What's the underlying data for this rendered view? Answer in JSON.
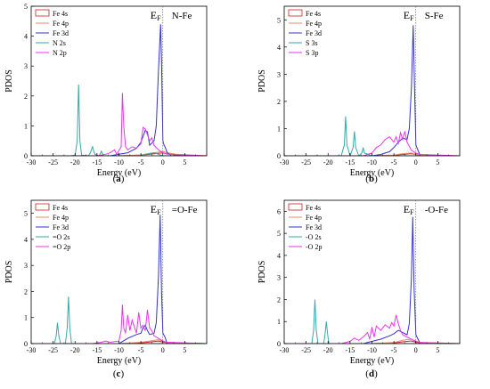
{
  "colors": {
    "fe4s": "#cc2222",
    "fe4p": "#ee8866",
    "fe3d": "#3333cc",
    "ls": "#33aaaa",
    "lp": "#ee33ee"
  },
  "chart_data": [
    {
      "type": "line",
      "panel": "(a)",
      "tag": "N-Fe",
      "fermi_label": "EF",
      "xlabel": "Energy (eV)",
      "ylabel": "PDOS",
      "xlim": [
        -30,
        10
      ],
      "ylim": [
        0,
        5
      ],
      "xticks": [
        -30,
        -25,
        -20,
        -15,
        -10,
        -5,
        0,
        5
      ],
      "yticks": [
        0,
        1,
        2,
        3,
        4,
        5
      ],
      "legend_position": "top-left",
      "series": [
        {
          "name": "Fe 4s",
          "color": "#cc2222",
          "x": [
            -30,
            -10,
            -5,
            -3,
            -1,
            0,
            1,
            3,
            10
          ],
          "y": [
            0,
            0,
            0.02,
            0.05,
            0.08,
            0.1,
            0.06,
            0.03,
            0
          ]
        },
        {
          "name": "Fe 4p",
          "color": "#ee8866",
          "x": [
            -30,
            -10,
            -5,
            -3,
            -1,
            0,
            1,
            3,
            10
          ],
          "y": [
            0,
            0,
            0.03,
            0.08,
            0.12,
            0.15,
            0.1,
            0.05,
            0
          ]
        },
        {
          "name": "Fe 3d",
          "color": "#3333cc",
          "x": [
            -30,
            -12,
            -10,
            -8,
            -6,
            -5,
            -4,
            -3.5,
            -3,
            -2,
            -1.5,
            -1,
            -0.5,
            -0.3,
            0,
            0.3,
            0.5,
            1,
            2,
            10
          ],
          "y": [
            0,
            0,
            0.05,
            0.1,
            0.25,
            0.45,
            0.85,
            0.8,
            0.35,
            0.5,
            1.0,
            2.8,
            4.4,
            3.2,
            0.5,
            0.35,
            0.3,
            0.1,
            0,
            0
          ]
        },
        {
          "name": "N  2s",
          "color": "#33aaaa",
          "x": [
            -30,
            -21,
            -20,
            -19.5,
            -19.2,
            -18.9,
            -18.5,
            -17,
            -16.5,
            -16,
            -15.5,
            -14.5,
            -14,
            -13.5,
            -12,
            -10,
            -8,
            -5,
            -4,
            -2,
            0,
            10
          ],
          "y": [
            0,
            0,
            0.02,
            0.5,
            2.38,
            0.5,
            0.02,
            0,
            0.1,
            0.3,
            0.05,
            0,
            0.15,
            0,
            0,
            0,
            0,
            0,
            0.05,
            0.1,
            0,
            0
          ]
        },
        {
          "name": "N  2p",
          "color": "#ee33ee",
          "x": [
            -30,
            -15,
            -13,
            -12,
            -11,
            -10.5,
            -9.5,
            -9.2,
            -8.9,
            -8.5,
            -8,
            -7,
            -6,
            -5,
            -4.5,
            -4,
            -3.5,
            -3,
            -2.5,
            -2,
            -1,
            0,
            1,
            10
          ],
          "y": [
            0,
            0,
            0.05,
            0.1,
            0.2,
            0.05,
            0.3,
            2.1,
            1.0,
            0.3,
            0.2,
            0.3,
            0.25,
            0.4,
            0.95,
            0.9,
            0.7,
            0.5,
            0.6,
            0.35,
            0.2,
            0.1,
            0.05,
            0
          ]
        }
      ]
    },
    {
      "type": "line",
      "panel": "(b)",
      "tag": "S-Fe",
      "fermi_label": "EF",
      "xlabel": "Energy (eV)",
      "ylabel": "PDOS",
      "xlim": [
        -30,
        10
      ],
      "ylim": [
        0,
        5.5
      ],
      "xticks": [
        -30,
        -25,
        -20,
        -15,
        -10,
        -5,
        0,
        5
      ],
      "yticks": [
        0,
        1,
        2,
        3,
        4,
        5
      ],
      "legend_position": "top-left",
      "series": [
        {
          "name": "Fe 4s",
          "color": "#cc2222",
          "x": [
            -30,
            -10,
            -5,
            -3,
            -1,
            0,
            1,
            10
          ],
          "y": [
            0,
            0,
            0.02,
            0.05,
            0.08,
            0.05,
            0.02,
            0
          ]
        },
        {
          "name": "Fe 4p",
          "color": "#ee8866",
          "x": [
            -30,
            -10,
            -5,
            -3,
            -1,
            0,
            1,
            10
          ],
          "y": [
            0,
            0,
            0.03,
            0.08,
            0.1,
            0.06,
            0.03,
            0
          ]
        },
        {
          "name": "Fe 3d",
          "color": "#3333cc",
          "x": [
            -30,
            -10,
            -8,
            -6,
            -5,
            -4,
            -3,
            -2,
            -1.5,
            -1,
            -0.6,
            -0.3,
            0,
            0.5,
            1,
            10
          ],
          "y": [
            0,
            0,
            0.05,
            0.15,
            0.3,
            0.5,
            0.65,
            0.6,
            1.0,
            2.5,
            4.8,
            2.5,
            0.4,
            0.2,
            0,
            0
          ]
        },
        {
          "name": "S  3s",
          "color": "#33aaaa",
          "x": [
            -30,
            -17,
            -16.3,
            -16,
            -15.7,
            -15,
            -14.3,
            -14,
            -13.7,
            -13,
            -12.3,
            -12,
            -11.7,
            -10,
            10
          ],
          "y": [
            0,
            0,
            0.4,
            1.45,
            0.4,
            0,
            0.3,
            0.9,
            0.3,
            0,
            0.1,
            0.3,
            0.1,
            0,
            0
          ]
        },
        {
          "name": "S  3p",
          "color": "#ee33ee",
          "x": [
            -30,
            -12,
            -10,
            -9,
            -8,
            -7,
            -6,
            -5,
            -4.5,
            -4,
            -3.5,
            -3,
            -2.5,
            -2,
            -1.5,
            -1,
            0,
            1,
            10
          ],
          "y": [
            0,
            0,
            0.1,
            0.3,
            0.4,
            0.6,
            0.7,
            0.5,
            0.7,
            0.45,
            0.85,
            0.6,
            0.9,
            0.5,
            0.35,
            0.2,
            0.1,
            0.05,
            0
          ]
        }
      ]
    },
    {
      "type": "line",
      "panel": "(c)",
      "tag": "=O-Fe",
      "fermi_label": "EF",
      "xlabel": "Energy (eV)",
      "ylabel": "PDOS",
      "xlim": [
        -30,
        10
      ],
      "ylim": [
        0,
        5.5
      ],
      "xticks": [
        -30,
        -25,
        -20,
        -15,
        -10,
        -5,
        0,
        5
      ],
      "yticks": [
        0,
        1,
        2,
        3,
        4,
        5
      ],
      "legend_position": "top-left",
      "series": [
        {
          "name": "Fe 4s",
          "color": "#cc2222",
          "x": [
            -30,
            -10,
            -5,
            -3,
            -1,
            0,
            1,
            10
          ],
          "y": [
            0,
            0,
            0.03,
            0.06,
            0.1,
            0.06,
            0.03,
            0
          ]
        },
        {
          "name": "Fe 4p",
          "color": "#ee8866",
          "x": [
            -30,
            -10,
            -5,
            -3,
            -1,
            0,
            1,
            10
          ],
          "y": [
            0,
            0,
            0.05,
            0.1,
            0.15,
            0.08,
            0.04,
            0
          ]
        },
        {
          "name": "Fe 3d",
          "color": "#3333cc",
          "x": [
            -30,
            -10,
            -9,
            -8,
            -6,
            -5,
            -4.5,
            -4,
            -3.5,
            -3,
            -2,
            -1.5,
            -1,
            -0.6,
            -0.3,
            0,
            0.5,
            1,
            10
          ],
          "y": [
            0,
            0,
            0.1,
            0.2,
            0.35,
            0.4,
            0.6,
            0.7,
            0.5,
            0.35,
            0.4,
            0.8,
            2.5,
            4.95,
            2.0,
            0.4,
            0.25,
            0,
            0
          ]
        },
        {
          "name": "=O 2s",
          "color": "#33aaaa",
          "x": [
            -30,
            -24.7,
            -24.3,
            -24,
            -23.7,
            -23.3,
            -22.2,
            -21.8,
            -21.5,
            -21.2,
            -20.8,
            -19,
            10
          ],
          "y": [
            0,
            0,
            0.3,
            0.8,
            0.3,
            0,
            0,
            0.6,
            1.8,
            0.6,
            0,
            0,
            0
          ]
        },
        {
          "name": "=O 2p",
          "color": "#ee33ee",
          "x": [
            -30,
            -16,
            -14,
            -13,
            -12,
            -10,
            -9.5,
            -9.2,
            -8.9,
            -8.5,
            -8,
            -7.5,
            -7,
            -6,
            -5.5,
            -5,
            -4.5,
            -4,
            -3.5,
            -3,
            -2.5,
            -2,
            -1,
            0,
            1,
            10
          ],
          "y": [
            0,
            0,
            0.05,
            0.1,
            0.05,
            0.1,
            0.5,
            1.5,
            0.6,
            0.4,
            1.1,
            0.5,
            0.9,
            0.4,
            1.2,
            0.6,
            0.7,
            0.5,
            1.3,
            0.6,
            0.5,
            0.3,
            0.2,
            0.1,
            0.05,
            0
          ]
        }
      ]
    },
    {
      "type": "line",
      "panel": "(d)",
      "tag": "-O-Fe",
      "fermi_label": "EF",
      "xlabel": "Energy (eV)",
      "ylabel": "PDOS",
      "xlim": [
        -30,
        10
      ],
      "ylim": [
        0,
        6.5
      ],
      "xticks": [
        -30,
        -25,
        -20,
        -15,
        -10,
        -5,
        0,
        5
      ],
      "yticks": [
        0,
        1,
        2,
        3,
        4,
        5,
        6
      ],
      "legend_position": "top-left",
      "series": [
        {
          "name": "Fe 4s",
          "color": "#cc2222",
          "x": [
            -30,
            -10,
            -5,
            -3,
            -1,
            0,
            1,
            10
          ],
          "y": [
            0,
            0,
            0.03,
            0.08,
            0.12,
            0.06,
            0.03,
            0
          ]
        },
        {
          "name": "Fe 4p",
          "color": "#ee8866",
          "x": [
            -30,
            -10,
            -5,
            -3,
            -1,
            0,
            1,
            10
          ],
          "y": [
            0,
            0,
            0.05,
            0.15,
            0.2,
            0.1,
            0.05,
            0
          ]
        },
        {
          "name": "Fe 3d",
          "color": "#3333cc",
          "x": [
            -30,
            -12,
            -10,
            -8,
            -6,
            -5,
            -4,
            -3,
            -2,
            -1.5,
            -1,
            -0.7,
            -0.4,
            0,
            0.5,
            1,
            10
          ],
          "y": [
            0,
            0,
            0.1,
            0.2,
            0.35,
            0.45,
            0.6,
            0.5,
            0.4,
            0.9,
            3.0,
            5.75,
            2.5,
            0.4,
            0.2,
            0,
            0
          ]
        },
        {
          "name": "-O 2s",
          "color": "#33aaaa",
          "x": [
            -30,
            -23.7,
            -23.3,
            -23,
            -22.7,
            -22.3,
            -21,
            -20.7,
            -20.4,
            -20.1,
            -19.8,
            -18,
            10
          ],
          "y": [
            0,
            0,
            0.6,
            2.0,
            0.6,
            0,
            0,
            0.4,
            1.0,
            0.4,
            0,
            0,
            0
          ]
        },
        {
          "name": "-O 2p",
          "color": "#ee33ee",
          "x": [
            -30,
            -17,
            -15,
            -14,
            -13,
            -12,
            -11,
            -10.5,
            -10,
            -9.5,
            -9,
            -8,
            -7,
            -6,
            -5.5,
            -5,
            -4.5,
            -4,
            -3.5,
            -3,
            -2,
            -1,
            0,
            1,
            10
          ],
          "y": [
            0,
            0,
            0.1,
            0.25,
            0.15,
            0.3,
            0.5,
            0.2,
            0.75,
            0.3,
            0.8,
            0.6,
            0.85,
            0.7,
            0.95,
            0.8,
            1.3,
            0.9,
            0.6,
            0.4,
            0.3,
            0.2,
            0.1,
            0.05,
            0
          ]
        }
      ]
    }
  ]
}
